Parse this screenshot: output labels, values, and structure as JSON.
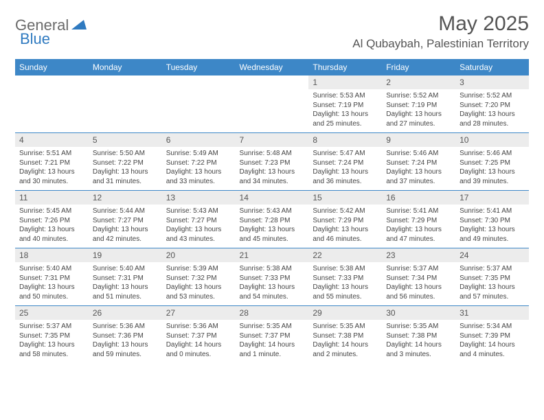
{
  "logo": {
    "word1": "General",
    "word2": "Blue"
  },
  "title": "May 2025",
  "location": "Al Qubaybah, Palestinian Territory",
  "colors": {
    "headerBg": "#3d87c7",
    "dayBg": "#ececec",
    "bodyBg": "#ffffff",
    "textMuted": "#555555"
  },
  "columns": [
    "Sunday",
    "Monday",
    "Tuesday",
    "Wednesday",
    "Thursday",
    "Friday",
    "Saturday"
  ],
  "weeks": [
    [
      null,
      null,
      null,
      null,
      {
        "d": "1",
        "sr": "5:53 AM",
        "ss": "7:19 PM",
        "dl": "13 hours and 25 minutes."
      },
      {
        "d": "2",
        "sr": "5:52 AM",
        "ss": "7:19 PM",
        "dl": "13 hours and 27 minutes."
      },
      {
        "d": "3",
        "sr": "5:52 AM",
        "ss": "7:20 PM",
        "dl": "13 hours and 28 minutes."
      }
    ],
    [
      {
        "d": "4",
        "sr": "5:51 AM",
        "ss": "7:21 PM",
        "dl": "13 hours and 30 minutes."
      },
      {
        "d": "5",
        "sr": "5:50 AM",
        "ss": "7:22 PM",
        "dl": "13 hours and 31 minutes."
      },
      {
        "d": "6",
        "sr": "5:49 AM",
        "ss": "7:22 PM",
        "dl": "13 hours and 33 minutes."
      },
      {
        "d": "7",
        "sr": "5:48 AM",
        "ss": "7:23 PM",
        "dl": "13 hours and 34 minutes."
      },
      {
        "d": "8",
        "sr": "5:47 AM",
        "ss": "7:24 PM",
        "dl": "13 hours and 36 minutes."
      },
      {
        "d": "9",
        "sr": "5:46 AM",
        "ss": "7:24 PM",
        "dl": "13 hours and 37 minutes."
      },
      {
        "d": "10",
        "sr": "5:46 AM",
        "ss": "7:25 PM",
        "dl": "13 hours and 39 minutes."
      }
    ],
    [
      {
        "d": "11",
        "sr": "5:45 AM",
        "ss": "7:26 PM",
        "dl": "13 hours and 40 minutes."
      },
      {
        "d": "12",
        "sr": "5:44 AM",
        "ss": "7:27 PM",
        "dl": "13 hours and 42 minutes."
      },
      {
        "d": "13",
        "sr": "5:43 AM",
        "ss": "7:27 PM",
        "dl": "13 hours and 43 minutes."
      },
      {
        "d": "14",
        "sr": "5:43 AM",
        "ss": "7:28 PM",
        "dl": "13 hours and 45 minutes."
      },
      {
        "d": "15",
        "sr": "5:42 AM",
        "ss": "7:29 PM",
        "dl": "13 hours and 46 minutes."
      },
      {
        "d": "16",
        "sr": "5:41 AM",
        "ss": "7:29 PM",
        "dl": "13 hours and 47 minutes."
      },
      {
        "d": "17",
        "sr": "5:41 AM",
        "ss": "7:30 PM",
        "dl": "13 hours and 49 minutes."
      }
    ],
    [
      {
        "d": "18",
        "sr": "5:40 AM",
        "ss": "7:31 PM",
        "dl": "13 hours and 50 minutes."
      },
      {
        "d": "19",
        "sr": "5:40 AM",
        "ss": "7:31 PM",
        "dl": "13 hours and 51 minutes."
      },
      {
        "d": "20",
        "sr": "5:39 AM",
        "ss": "7:32 PM",
        "dl": "13 hours and 53 minutes."
      },
      {
        "d": "21",
        "sr": "5:38 AM",
        "ss": "7:33 PM",
        "dl": "13 hours and 54 minutes."
      },
      {
        "d": "22",
        "sr": "5:38 AM",
        "ss": "7:33 PM",
        "dl": "13 hours and 55 minutes."
      },
      {
        "d": "23",
        "sr": "5:37 AM",
        "ss": "7:34 PM",
        "dl": "13 hours and 56 minutes."
      },
      {
        "d": "24",
        "sr": "5:37 AM",
        "ss": "7:35 PM",
        "dl": "13 hours and 57 minutes."
      }
    ],
    [
      {
        "d": "25",
        "sr": "5:37 AM",
        "ss": "7:35 PM",
        "dl": "13 hours and 58 minutes."
      },
      {
        "d": "26",
        "sr": "5:36 AM",
        "ss": "7:36 PM",
        "dl": "13 hours and 59 minutes."
      },
      {
        "d": "27",
        "sr": "5:36 AM",
        "ss": "7:37 PM",
        "dl": "14 hours and 0 minutes."
      },
      {
        "d": "28",
        "sr": "5:35 AM",
        "ss": "7:37 PM",
        "dl": "14 hours and 1 minute."
      },
      {
        "d": "29",
        "sr": "5:35 AM",
        "ss": "7:38 PM",
        "dl": "14 hours and 2 minutes."
      },
      {
        "d": "30",
        "sr": "5:35 AM",
        "ss": "7:38 PM",
        "dl": "14 hours and 3 minutes."
      },
      {
        "d": "31",
        "sr": "5:34 AM",
        "ss": "7:39 PM",
        "dl": "14 hours and 4 minutes."
      }
    ]
  ],
  "labels": {
    "sunrise": "Sunrise: ",
    "sunset": "Sunset: ",
    "daylight": "Daylight: "
  }
}
